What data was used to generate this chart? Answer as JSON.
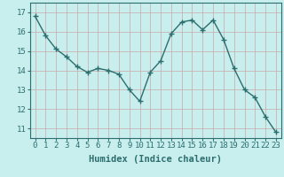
{
  "x": [
    0,
    1,
    2,
    3,
    4,
    5,
    6,
    7,
    8,
    9,
    10,
    11,
    12,
    13,
    14,
    15,
    16,
    17,
    18,
    19,
    20,
    21,
    22,
    23
  ],
  "y": [
    16.8,
    15.8,
    15.1,
    14.7,
    14.2,
    13.9,
    14.1,
    14.0,
    13.8,
    13.0,
    12.4,
    13.9,
    14.5,
    15.9,
    16.5,
    16.6,
    16.1,
    16.6,
    15.6,
    14.1,
    13.0,
    12.6,
    11.6,
    10.8
  ],
  "line_color": "#2d6e6e",
  "marker": "+",
  "marker_size": 4,
  "bg_color": "#c8eeee",
  "label_bg_color": "#a8d8d8",
  "grid_color": "#c8a8a8",
  "xlabel": "Humidex (Indice chaleur)",
  "ylim": [
    10.5,
    17.5
  ],
  "xlim": [
    -0.5,
    23.5
  ],
  "yticks": [
    11,
    12,
    13,
    14,
    15,
    16,
    17
  ],
  "xticks": [
    0,
    1,
    2,
    3,
    4,
    5,
    6,
    7,
    8,
    9,
    10,
    11,
    12,
    13,
    14,
    15,
    16,
    17,
    18,
    19,
    20,
    21,
    22,
    23
  ],
  "xlabel_fontsize": 7.5,
  "tick_fontsize": 6.5,
  "line_width": 1.0,
  "marker_edge_width": 1.0,
  "spine_color": "#2d6e6e"
}
